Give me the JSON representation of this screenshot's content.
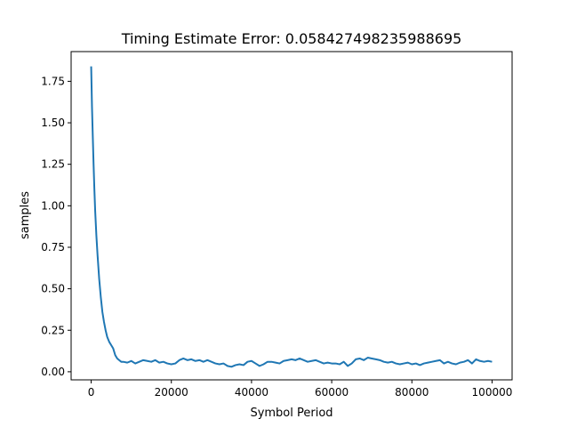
{
  "chart_data": {
    "type": "line",
    "title": "Timing Estimate Error: 0.058427498235988695",
    "xlabel": "Symbol Period",
    "ylabel": "samples",
    "xlim": [
      -5000,
      105000
    ],
    "ylim": [
      -0.0488,
      1.929
    ],
    "xticks": [
      0,
      20000,
      40000,
      60000,
      80000,
      100000
    ],
    "xtick_labels": [
      "0",
      "20000",
      "40000",
      "60000",
      "80000",
      "100000"
    ],
    "yticks": [
      0.0,
      0.25,
      0.5,
      0.75,
      1.0,
      1.25,
      1.5,
      1.75
    ],
    "ytick_labels": [
      "0.00",
      "0.25",
      "0.50",
      "0.75",
      "1.00",
      "1.25",
      "1.50",
      "1.75"
    ],
    "grid": false,
    "series": [
      {
        "color": "#1f77b4",
        "x": [
          0,
          200,
          400,
          600,
          800,
          1000,
          1300,
          1600,
          2000,
          2400,
          2800,
          3200,
          3600,
          4000,
          4500,
          5000,
          5500,
          6000,
          6500,
          7000,
          7500,
          8000,
          9000,
          10000,
          11000,
          12000,
          13000,
          14000,
          15000,
          16000,
          17000,
          18000,
          19000,
          20000,
          21000,
          22000,
          23000,
          24000,
          25000,
          26000,
          27000,
          28000,
          29000,
          30000,
          31000,
          32000,
          33000,
          34000,
          35000,
          36000,
          37000,
          38000,
          39000,
          40000,
          41000,
          42000,
          43000,
          44000,
          45000,
          46000,
          47000,
          48000,
          49000,
          50000,
          51000,
          52000,
          53000,
          54000,
          55000,
          56000,
          57000,
          58000,
          59000,
          60000,
          61000,
          62000,
          63000,
          64000,
          65000,
          66000,
          67000,
          68000,
          69000,
          70000,
          71000,
          72000,
          73000,
          74000,
          75000,
          76000,
          77000,
          78000,
          79000,
          80000,
          81000,
          82000,
          83000,
          84000,
          85000,
          86000,
          87000,
          88000,
          89000,
          90000,
          91000,
          92000,
          93000,
          94000,
          95000,
          96000,
          97000,
          98000,
          99000,
          100000
        ],
        "y": [
          1.84,
          1.6,
          1.42,
          1.25,
          1.1,
          0.97,
          0.82,
          0.7,
          0.56,
          0.45,
          0.36,
          0.3,
          0.25,
          0.21,
          0.18,
          0.16,
          0.14,
          0.1,
          0.08,
          0.07,
          0.06,
          0.06,
          0.055,
          0.065,
          0.05,
          0.06,
          0.07,
          0.065,
          0.06,
          0.07,
          0.055,
          0.06,
          0.05,
          0.045,
          0.05,
          0.07,
          0.08,
          0.07,
          0.075,
          0.065,
          0.07,
          0.06,
          0.07,
          0.06,
          0.05,
          0.045,
          0.05,
          0.035,
          0.03,
          0.04,
          0.045,
          0.04,
          0.06,
          0.065,
          0.05,
          0.035,
          0.045,
          0.06,
          0.06,
          0.055,
          0.05,
          0.065,
          0.07,
          0.075,
          0.07,
          0.08,
          0.07,
          0.06,
          0.065,
          0.07,
          0.06,
          0.05,
          0.055,
          0.05,
          0.05,
          0.045,
          0.06,
          0.035,
          0.05,
          0.075,
          0.08,
          0.07,
          0.085,
          0.08,
          0.075,
          0.07,
          0.06,
          0.055,
          0.06,
          0.05,
          0.045,
          0.05,
          0.055,
          0.045,
          0.05,
          0.04,
          0.05,
          0.055,
          0.06,
          0.065,
          0.07,
          0.05,
          0.06,
          0.05,
          0.045,
          0.055,
          0.06,
          0.07,
          0.05,
          0.075,
          0.065,
          0.06,
          0.065,
          0.06
        ]
      }
    ]
  }
}
